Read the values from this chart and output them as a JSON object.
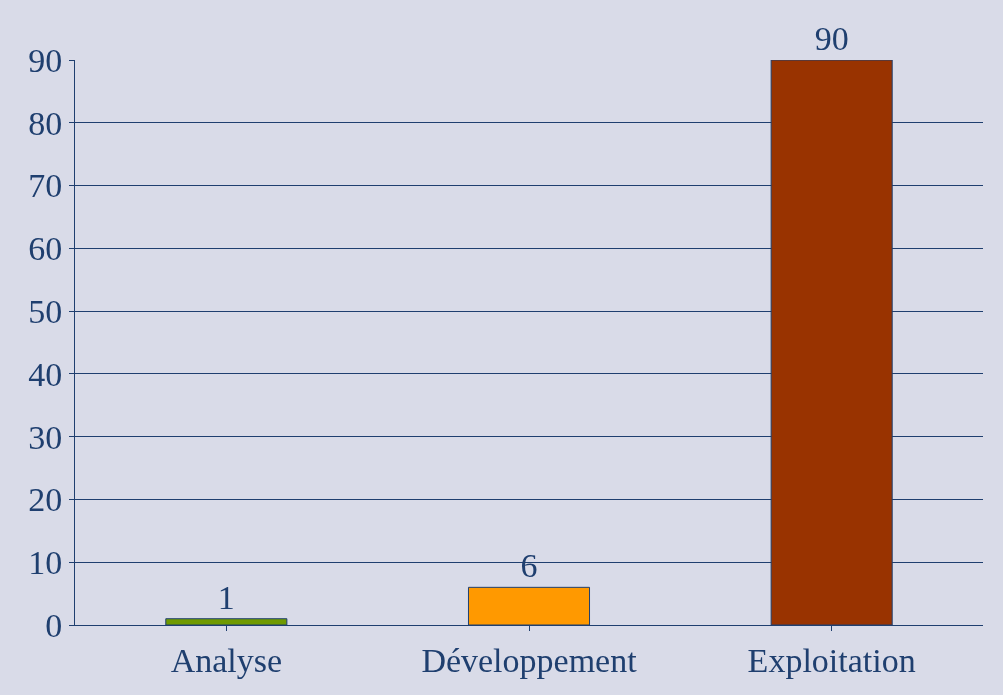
{
  "chart_data": {
    "type": "bar",
    "categories": [
      "Analyse",
      "Développement",
      "Exploitation"
    ],
    "values": [
      1,
      6,
      90
    ],
    "colors": [
      "#6f9a00",
      "#ff9900",
      "#993300"
    ],
    "ylim": [
      0,
      90
    ],
    "yticks": [
      0,
      10,
      20,
      30,
      40,
      50,
      60,
      70,
      80,
      90
    ],
    "grid": "y",
    "data_labels": true
  }
}
